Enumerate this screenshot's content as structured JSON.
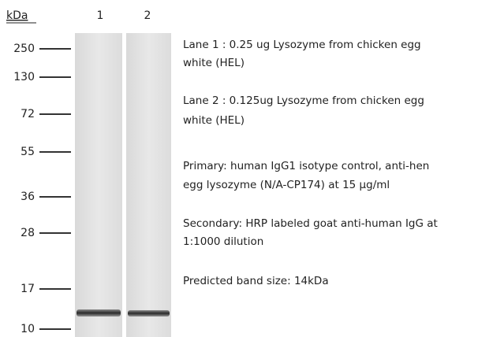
{
  "axis_label": "kDa",
  "lanes": [
    "1",
    "2"
  ],
  "markers": [
    "250",
    "130",
    "72",
    "55",
    "36",
    "28",
    "17",
    "10"
  ],
  "notes": [
    [
      "Lane 1 : 0.25 ug  Lysozyme from chicken egg",
      "white (HEL)"
    ],
    [
      "Lane 2 : 0.125ug  Lysozyme from chicken egg",
      "white (HEL)"
    ],
    [
      "Primary: human IgG1 isotype control, anti-hen",
      "egg lysozyme (N/A-CP174) at 15 µg/ml"
    ],
    [
      "Secondary: HRP labeled goat anti-human IgG at",
      "1:1000 dilution"
    ],
    [
      "Predicted band size: 14kDa"
    ]
  ]
}
